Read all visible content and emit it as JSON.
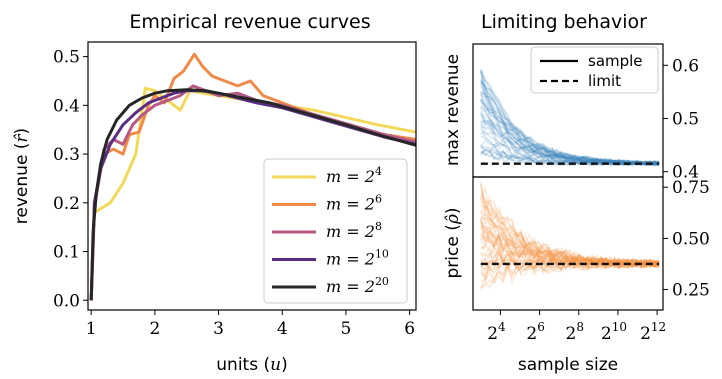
{
  "chart_data": [
    {
      "type": "line",
      "title": "Empirical revenue curves",
      "xlabel": "units (u)",
      "ylabel": "revenue (r̂)",
      "xlim": [
        0.95,
        6.1
      ],
      "ylim": [
        -0.02,
        0.53
      ],
      "xticks": [
        1,
        2,
        3,
        4,
        5,
        6
      ],
      "yticks": [
        0.0,
        0.1,
        0.2,
        0.3,
        0.4,
        0.5
      ],
      "ytick_labels": [
        "0.0",
        "0.1",
        "0.2",
        "0.3",
        "0.4",
        "0.5"
      ],
      "legend_position": "lower-right",
      "series": [
        {
          "name": "m = 2^4",
          "label_base": "m = 2",
          "label_exp": "4",
          "color": "#f3d95b",
          "x": [
            1.0,
            1.05,
            1.3,
            1.5,
            1.7,
            1.85,
            2.0,
            2.2,
            2.4,
            2.55,
            2.75,
            3.0,
            3.5,
            4.0,
            4.5,
            5.0,
            5.5,
            6.1
          ],
          "y": [
            0.0,
            0.18,
            0.2,
            0.24,
            0.3,
            0.435,
            0.43,
            0.41,
            0.39,
            0.43,
            0.425,
            0.42,
            0.41,
            0.4,
            0.39,
            0.375,
            0.36,
            0.345
          ]
        },
        {
          "name": "m = 2^6",
          "label_base": "m = 2",
          "label_exp": "6",
          "color": "#ef8a48",
          "x": [
            1.0,
            1.05,
            1.2,
            1.35,
            1.5,
            1.6,
            1.75,
            1.9,
            2.0,
            2.15,
            2.3,
            2.45,
            2.62,
            2.75,
            2.9,
            3.1,
            3.3,
            3.5,
            3.7,
            4.0,
            4.3,
            4.6,
            5.0,
            5.3,
            5.6,
            6.1
          ],
          "y": [
            0.0,
            0.2,
            0.3,
            0.31,
            0.3,
            0.34,
            0.345,
            0.4,
            0.42,
            0.405,
            0.455,
            0.47,
            0.505,
            0.48,
            0.46,
            0.45,
            0.44,
            0.45,
            0.42,
            0.405,
            0.39,
            0.375,
            0.36,
            0.35,
            0.34,
            0.33
          ]
        },
        {
          "name": "m = 2^8",
          "label_base": "m = 2",
          "label_exp": "8",
          "color": "#b65a84",
          "x": [
            1.0,
            1.05,
            1.2,
            1.35,
            1.5,
            1.65,
            1.8,
            2.0,
            2.2,
            2.4,
            2.6,
            2.8,
            3.0,
            3.3,
            3.6,
            4.0,
            4.4,
            4.8,
            5.2,
            5.6,
            6.1
          ],
          "y": [
            0.0,
            0.19,
            0.31,
            0.33,
            0.32,
            0.36,
            0.38,
            0.4,
            0.41,
            0.42,
            0.44,
            0.43,
            0.42,
            0.425,
            0.41,
            0.4,
            0.385,
            0.37,
            0.355,
            0.34,
            0.325
          ]
        },
        {
          "name": "m = 2^10",
          "label_base": "m = 2",
          "label_exp": "10",
          "color": "#5b2d82",
          "x": [
            1.0,
            1.05,
            1.15,
            1.3,
            1.5,
            1.7,
            1.9,
            2.1,
            2.3,
            2.5,
            2.7,
            3.0,
            3.3,
            3.6,
            4.0,
            4.4,
            4.8,
            5.2,
            5.6,
            6.1
          ],
          "y": [
            0.0,
            0.2,
            0.27,
            0.32,
            0.36,
            0.385,
            0.405,
            0.415,
            0.425,
            0.43,
            0.43,
            0.425,
            0.415,
            0.405,
            0.395,
            0.38,
            0.365,
            0.35,
            0.335,
            0.32
          ]
        },
        {
          "name": "m = 2^20",
          "label_base": "m = 2",
          "label_exp": "20",
          "color": "#262626",
          "x": [
            1.0,
            1.03,
            1.08,
            1.15,
            1.25,
            1.4,
            1.6,
            1.8,
            2.0,
            2.2,
            2.5,
            2.8,
            3.0,
            3.4,
            3.8,
            4.2,
            4.6,
            5.0,
            5.5,
            6.1
          ],
          "y": [
            0.0,
            0.14,
            0.22,
            0.28,
            0.33,
            0.37,
            0.4,
            0.415,
            0.425,
            0.43,
            0.432,
            0.43,
            0.425,
            0.415,
            0.405,
            0.39,
            0.375,
            0.36,
            0.34,
            0.318
          ]
        }
      ]
    },
    {
      "type": "line",
      "title": "Limiting behavior",
      "panels": [
        {
          "ylabel": "max revenue",
          "ylim": [
            0.39,
            0.64
          ],
          "yticks": [
            0.4,
            0.5,
            0.6
          ],
          "ytick_labels": [
            "0.4",
            "0.5",
            "0.6"
          ],
          "yaxis_side": "right",
          "color": "#3b83ba",
          "limit_value": 0.415,
          "legend_position": "top-right",
          "legend": [
            {
              "label": "sample",
              "style": "solid"
            },
            {
              "label": "limit",
              "style": "dashed"
            }
          ]
        },
        {
          "ylabel": "price (ρ̂)",
          "ylim": [
            0.15,
            0.8
          ],
          "yticks": [
            0.25,
            0.5,
            0.75
          ],
          "ytick_labels": [
            "0.25",
            "0.50",
            "0.75"
          ],
          "yaxis_side": "right",
          "color": "#f5923e",
          "limit_value": 0.375
        }
      ],
      "xlabel": "sample size",
      "xscale": "log2",
      "xlim_exp": [
        2.6,
        12.3
      ],
      "xtick_base": "2",
      "xtick_exps": [
        "4",
        "6",
        "8",
        "10",
        "12"
      ],
      "samples_shown": 45
    }
  ]
}
